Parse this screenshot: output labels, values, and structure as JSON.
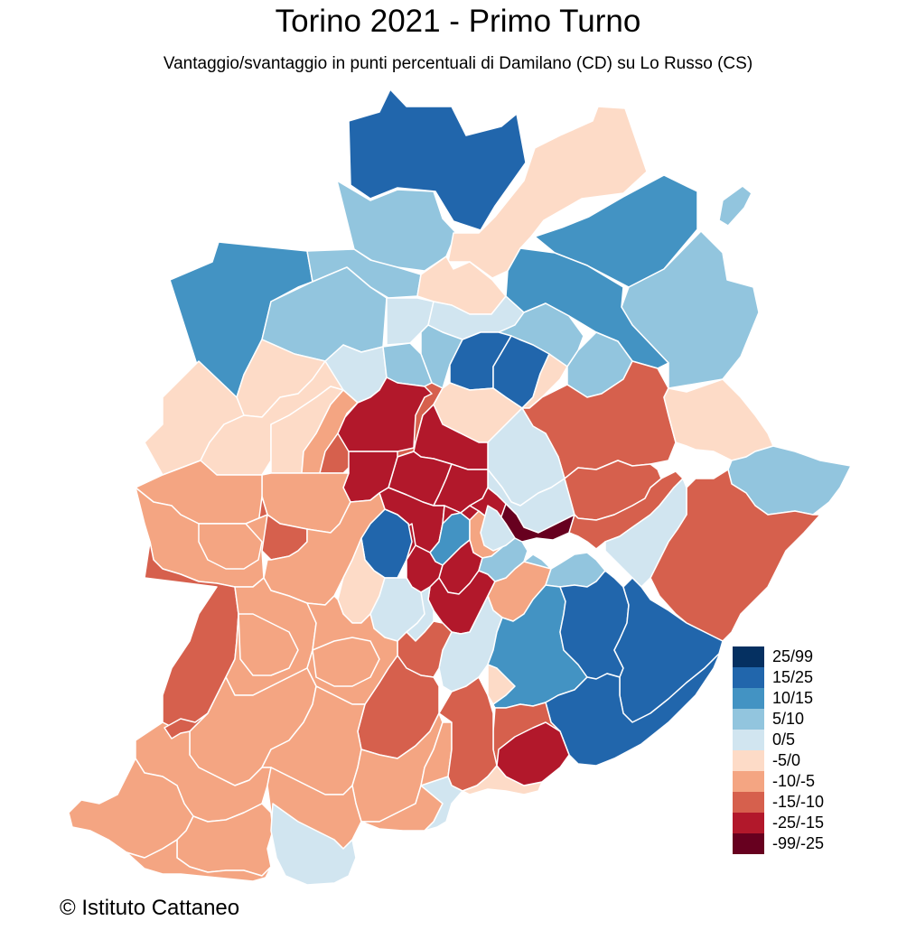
{
  "title": "Torino 2021 - Primo Turno",
  "subtitle": "Vantaggio/svantaggio in punti percentuali di Damilano (CD) su Lo Russo (CS)",
  "credit": "© Istituto Cattaneo",
  "legend": [
    {
      "label": "25/99",
      "color": "#053061"
    },
    {
      "label": "15/25",
      "color": "#2166ac"
    },
    {
      "label": "10/15",
      "color": "#4393c3"
    },
    {
      "label": "5/10",
      "color": "#92c5de"
    },
    {
      "label": "0/5",
      "color": "#d1e5f0"
    },
    {
      "label": "-5/0",
      "color": "#fddbc7"
    },
    {
      "label": "-10/-5",
      "color": "#f4a582"
    },
    {
      "label": "-15/-10",
      "color": "#d6604d"
    },
    {
      "label": "-25/-15",
      "color": "#b2182b"
    },
    {
      "label": "-99/-25",
      "color": "#67001f"
    }
  ],
  "zones": [
    {
      "class": "15/25"
    },
    {
      "class": "5/10"
    },
    {
      "class": "-5/0"
    },
    {
      "class": "10/15"
    },
    {
      "class": "5/10"
    },
    {
      "class": "5/10"
    },
    {
      "class": "10/15"
    },
    {
      "class": "5/10"
    },
    {
      "class": "-5/0"
    },
    {
      "class": "5/10"
    },
    {
      "class": "0/5"
    },
    {
      "class": "0/5"
    },
    {
      "class": "10/15"
    },
    {
      "class": "5/10"
    },
    {
      "class": "-5/0"
    },
    {
      "class": "0/5"
    },
    {
      "class": "5/10"
    },
    {
      "class": "5/10"
    },
    {
      "class": "15/25"
    },
    {
      "class": "15/25"
    },
    {
      "class": "-5/0"
    },
    {
      "class": "5/10"
    },
    {
      "class": "-5/0"
    },
    {
      "class": "-5/0"
    },
    {
      "class": "-5/0"
    },
    {
      "class": "-10/-5"
    },
    {
      "class": "-15/-10"
    },
    {
      "class": "-5/0"
    },
    {
      "class": "-25/-15"
    },
    {
      "class": "-15/-10"
    },
    {
      "class": "0/5"
    },
    {
      "class": "-25/-15"
    },
    {
      "class": "0/5"
    },
    {
      "class": "-25/-15"
    },
    {
      "class": "-25/-15"
    },
    {
      "class": "-25/-15"
    },
    {
      "class": "-25/-15"
    },
    {
      "class": "-99/-25"
    },
    {
      "class": "-25/-15"
    },
    {
      "class": "-15/-10"
    },
    {
      "class": "-15/-10"
    },
    {
      "class": "-10/-5"
    },
    {
      "class": "-10/-5"
    },
    {
      "class": "-5/0"
    },
    {
      "class": "5/10"
    },
    {
      "class": "-15/-10"
    },
    {
      "class": "-15/-10"
    },
    {
      "class": "-25/-15"
    },
    {
      "class": "0/5"
    },
    {
      "class": "15/25"
    },
    {
      "class": "10/15"
    },
    {
      "class": "-10/-5"
    },
    {
      "class": "-25/-15"
    },
    {
      "class": "-25/-15"
    },
    {
      "class": "-25/-15"
    },
    {
      "class": "-10/-5"
    },
    {
      "class": "-10/-5"
    },
    {
      "class": "-10/-5"
    },
    {
      "class": "-5/0"
    },
    {
      "class": "0/5"
    },
    {
      "class": "0/5"
    },
    {
      "class": "5/10"
    },
    {
      "class": "0/5"
    },
    {
      "class": "-15/-10"
    },
    {
      "class": "5/10"
    },
    {
      "class": "10/15"
    },
    {
      "class": "15/25"
    },
    {
      "class": "15/25"
    },
    {
      "class": "15/25"
    },
    {
      "class": "-15/-10"
    },
    {
      "class": "-15/-10"
    },
    {
      "class": "-15/-10"
    },
    {
      "class": "-10/-5"
    },
    {
      "class": "-10/-5"
    },
    {
      "class": "-10/-5"
    },
    {
      "class": "-10/-5"
    },
    {
      "class": "-10/-5"
    },
    {
      "class": "-10/-5"
    },
    {
      "class": "-10/-5"
    },
    {
      "class": "-10/-5"
    },
    {
      "class": "-10/-5"
    },
    {
      "class": "-10/-5"
    },
    {
      "class": "-10/-5"
    },
    {
      "class": "-15/-10"
    },
    {
      "class": "-15/-10"
    },
    {
      "class": "0/5"
    },
    {
      "class": "0/5"
    },
    {
      "class": "-5/0"
    },
    {
      "class": "-5/0"
    },
    {
      "class": "-25/-15"
    },
    {
      "class": "0/5"
    },
    {
      "class": "-10/-5"
    },
    {
      "class": "-10/-5"
    },
    {
      "class": "-10/-5"
    }
  ]
}
